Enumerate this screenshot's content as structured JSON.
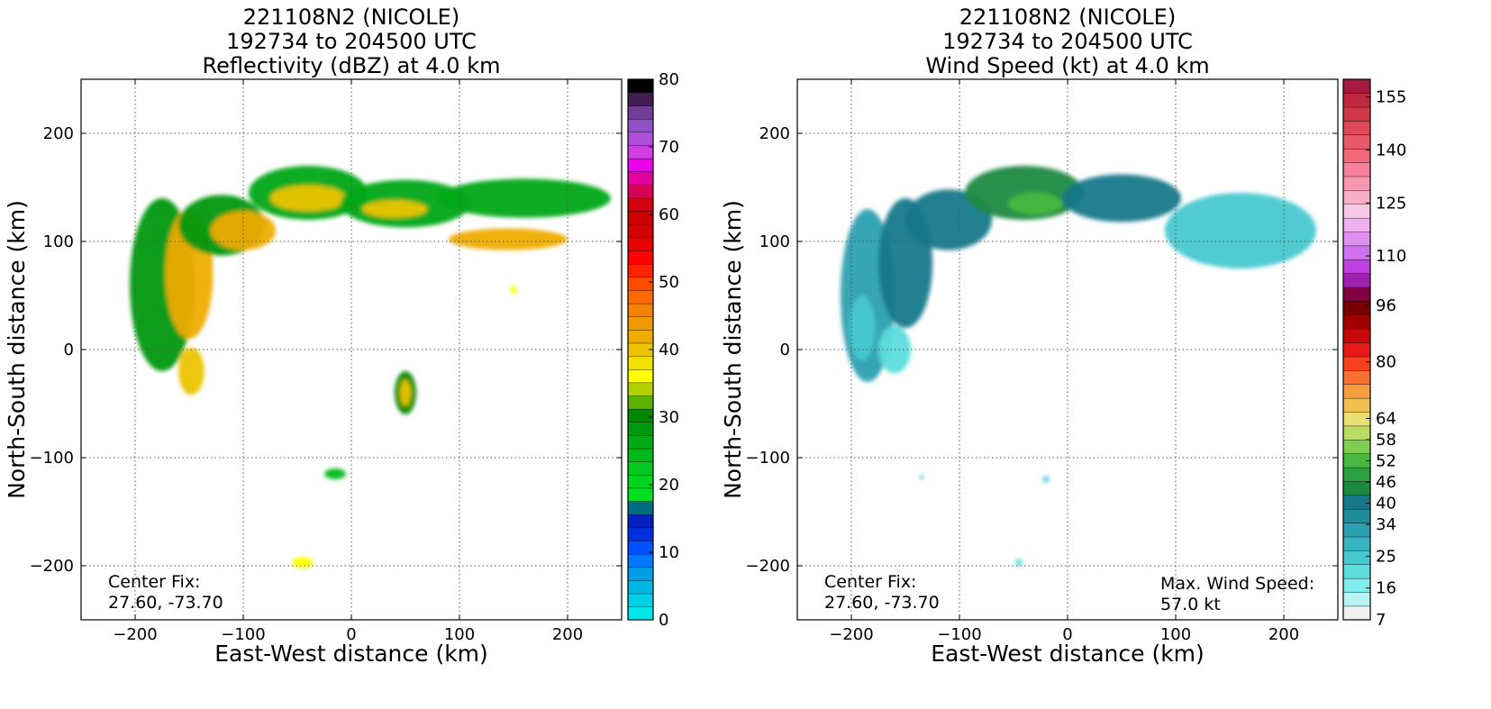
{
  "chart_data": [
    {
      "type": "heatmap",
      "title_lines": [
        "221108N2 (NICOLE)",
        "192734 to 204500 UTC",
        "Reflectivity (dBZ) at 4.0 km"
      ],
      "xlabel": "East-West distance (km)",
      "ylabel": "North-South distance (km)",
      "xlim": [
        -250,
        250
      ],
      "ylim": [
        -250,
        250
      ],
      "xticks": [
        -200,
        -100,
        0,
        100,
        200
      ],
      "yticks": [
        -200,
        -100,
        0,
        100,
        200
      ],
      "grid": true,
      "colorbar": {
        "min": 0,
        "max": 80,
        "ticks": [
          0,
          10,
          20,
          30,
          40,
          50,
          60,
          70,
          80
        ],
        "colors": [
          "#00e5e5",
          "#00cfe5",
          "#00b6e5",
          "#009ee5",
          "#0078ff",
          "#0050ff",
          "#0030e0",
          "#0020c0",
          "#006e80",
          "#00e020",
          "#00d420",
          "#00c820",
          "#00b818",
          "#00a814",
          "#009810",
          "#008800",
          "#5cb000",
          "#b0d000",
          "#ffff00",
          "#f2e000",
          "#ecc400",
          "#eeac00",
          "#f09800",
          "#f08400",
          "#ff6a00",
          "#ff4a00",
          "#ff2400",
          "#ff0000",
          "#e60000",
          "#d20000",
          "#cc0000",
          "#d40010",
          "#d80050",
          "#e000a0",
          "#ec00ec",
          "#d040e0",
          "#b050d8",
          "#9050c8",
          "#703c98",
          "#401c50",
          "#000000"
        ]
      },
      "annotations": [
        {
          "text": "Center Fix:",
          "position": "bottom-left"
        },
        {
          "text": "27.60, -73.70",
          "position": "bottom-left"
        }
      ],
      "echo_regions": [
        {
          "kind": "ellipse",
          "cx": -175,
          "cy": 60,
          "rx": 30,
          "ry": 80,
          "value": 28
        },
        {
          "kind": "ellipse",
          "cx": -150,
          "cy": 70,
          "rx": 22,
          "ry": 60,
          "value": 41
        },
        {
          "kind": "ellipse",
          "cx": -120,
          "cy": 115,
          "rx": 40,
          "ry": 28,
          "value": 28
        },
        {
          "kind": "ellipse",
          "cx": -100,
          "cy": 110,
          "rx": 30,
          "ry": 18,
          "value": 41
        },
        {
          "kind": "ellipse",
          "cx": -40,
          "cy": 145,
          "rx": 55,
          "ry": 25,
          "value": 27
        },
        {
          "kind": "ellipse",
          "cx": -40,
          "cy": 140,
          "rx": 35,
          "ry": 12,
          "value": 40
        },
        {
          "kind": "ellipse",
          "cx": 50,
          "cy": 135,
          "rx": 60,
          "ry": 22,
          "value": 27
        },
        {
          "kind": "ellipse",
          "cx": 40,
          "cy": 130,
          "rx": 30,
          "ry": 8,
          "value": 40
        },
        {
          "kind": "ellipse",
          "cx": 160,
          "cy": 140,
          "rx": 80,
          "ry": 18,
          "value": 26
        },
        {
          "kind": "ellipse",
          "cx": 145,
          "cy": 102,
          "rx": 55,
          "ry": 10,
          "value": 41
        },
        {
          "kind": "ellipse",
          "cx": 50,
          "cy": -40,
          "rx": 10,
          "ry": 20,
          "value": 30
        },
        {
          "kind": "ellipse",
          "cx": 50,
          "cy": -40,
          "rx": 5,
          "ry": 12,
          "value": 40
        },
        {
          "kind": "ellipse",
          "cx": -148,
          "cy": -20,
          "rx": 12,
          "ry": 22,
          "value": 40
        },
        {
          "kind": "ellipse",
          "cx": -15,
          "cy": -115,
          "rx": 10,
          "ry": 5,
          "value": 25
        },
        {
          "kind": "ellipse",
          "cx": -45,
          "cy": -197,
          "rx": 10,
          "ry": 5,
          "value": 36
        },
        {
          "kind": "ellipse",
          "cx": 150,
          "cy": 55,
          "rx": 3,
          "ry": 4,
          "value": 36
        }
      ]
    },
    {
      "type": "heatmap",
      "title_lines": [
        "221108N2 (NICOLE)",
        "192734 to 204500 UTC",
        "Wind Speed (kt) at 4.0 km"
      ],
      "xlabel": "East-West distance (km)",
      "ylabel": "North-South distance (km)",
      "xlim": [
        -250,
        250
      ],
      "ylim": [
        -250,
        250
      ],
      "xticks": [
        -200,
        -100,
        0,
        100,
        200
      ],
      "yticks": [
        -200,
        -100,
        0,
        100,
        200
      ],
      "grid": true,
      "colorbar": {
        "min": 7,
        "max": 160,
        "ticks": [
          7,
          16,
          25,
          34,
          40,
          46,
          52,
          58,
          64,
          80,
          96,
          110,
          125,
          140,
          155
        ],
        "colors": [
          "#f0f0f0",
          "#b8f4f4",
          "#80eeee",
          "#5cdcdc",
          "#46c8d0",
          "#38b4c0",
          "#2ca0b0",
          "#208c9c",
          "#18788a",
          "#1a8a40",
          "#2aa040",
          "#48b840",
          "#80cc50",
          "#b8dc60",
          "#e8e070",
          "#f0c050",
          "#f89c40",
          "#f87030",
          "#f84020",
          "#e81818",
          "#c80808",
          "#a00000",
          "#780000",
          "#800040",
          "#a020b0",
          "#c040e0",
          "#d070f0",
          "#e090f0",
          "#f0b0f0",
          "#f8c8e8",
          "#f8b0c8",
          "#f898b0",
          "#f8809c",
          "#f06878",
          "#e85868",
          "#e04858",
          "#d03848",
          "#c02840",
          "#a81840"
        ]
      },
      "annotations": [
        {
          "text": "Center Fix:",
          "position": "bottom-left"
        },
        {
          "text": "27.60, -73.70",
          "position": "bottom-left"
        },
        {
          "text": "Max. Wind Speed:",
          "position": "bottom-right"
        },
        {
          "text": "57.0 kt",
          "position": "bottom-right"
        }
      ],
      "echo_regions": [
        {
          "kind": "ellipse",
          "cx": -185,
          "cy": 50,
          "rx": 25,
          "ry": 80,
          "value": 34
        },
        {
          "kind": "ellipse",
          "cx": -190,
          "cy": 20,
          "rx": 12,
          "ry": 30,
          "value": 25
        },
        {
          "kind": "ellipse",
          "cx": -160,
          "cy": 0,
          "rx": 15,
          "ry": 22,
          "value": 20
        },
        {
          "kind": "ellipse",
          "cx": -150,
          "cy": 80,
          "rx": 25,
          "ry": 60,
          "value": 40
        },
        {
          "kind": "ellipse",
          "cx": -110,
          "cy": 120,
          "rx": 40,
          "ry": 28,
          "value": 42
        },
        {
          "kind": "ellipse",
          "cx": -40,
          "cy": 145,
          "rx": 55,
          "ry": 25,
          "value": 44
        },
        {
          "kind": "ellipse",
          "cx": -30,
          "cy": 135,
          "rx": 25,
          "ry": 10,
          "value": 52
        },
        {
          "kind": "ellipse",
          "cx": 50,
          "cy": 140,
          "rx": 55,
          "ry": 22,
          "value": 40
        },
        {
          "kind": "ellipse",
          "cx": 160,
          "cy": 110,
          "rx": 70,
          "ry": 35,
          "value": 26
        },
        {
          "kind": "ellipse",
          "cx": -135,
          "cy": -118,
          "rx": 2,
          "ry": 2,
          "value": 25
        },
        {
          "kind": "ellipse",
          "cx": -20,
          "cy": -120,
          "rx": 3,
          "ry": 3,
          "value": 25
        },
        {
          "kind": "ellipse",
          "cx": -45,
          "cy": -197,
          "rx": 4,
          "ry": 3,
          "value": 20
        }
      ]
    }
  ]
}
